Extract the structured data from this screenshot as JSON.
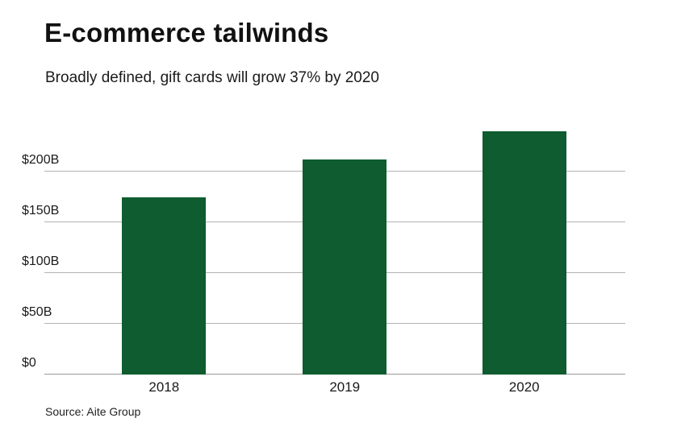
{
  "chart_data": {
    "type": "bar",
    "title": "E-commerce tailwinds",
    "subtitle": "Broadly defined, gift cards will grow 37% by 2020",
    "source": "Source: Aite Group",
    "categories": [
      "2018",
      "2019",
      "2020"
    ],
    "values": [
      175,
      212,
      240
    ],
    "unit": "USD billions",
    "xlabel": "",
    "ylabel": "",
    "ylim": [
      0,
      250
    ],
    "yticks": [
      0,
      50,
      100,
      150,
      200
    ],
    "ytick_labels": [
      "$0",
      "$50B",
      "$100B",
      "$150B",
      "$200B"
    ],
    "grid": true,
    "legend": false,
    "bar_color": "#0e5c2f",
    "gridline_color": "#b3b3b3",
    "text_color": "#1a1a1a"
  }
}
